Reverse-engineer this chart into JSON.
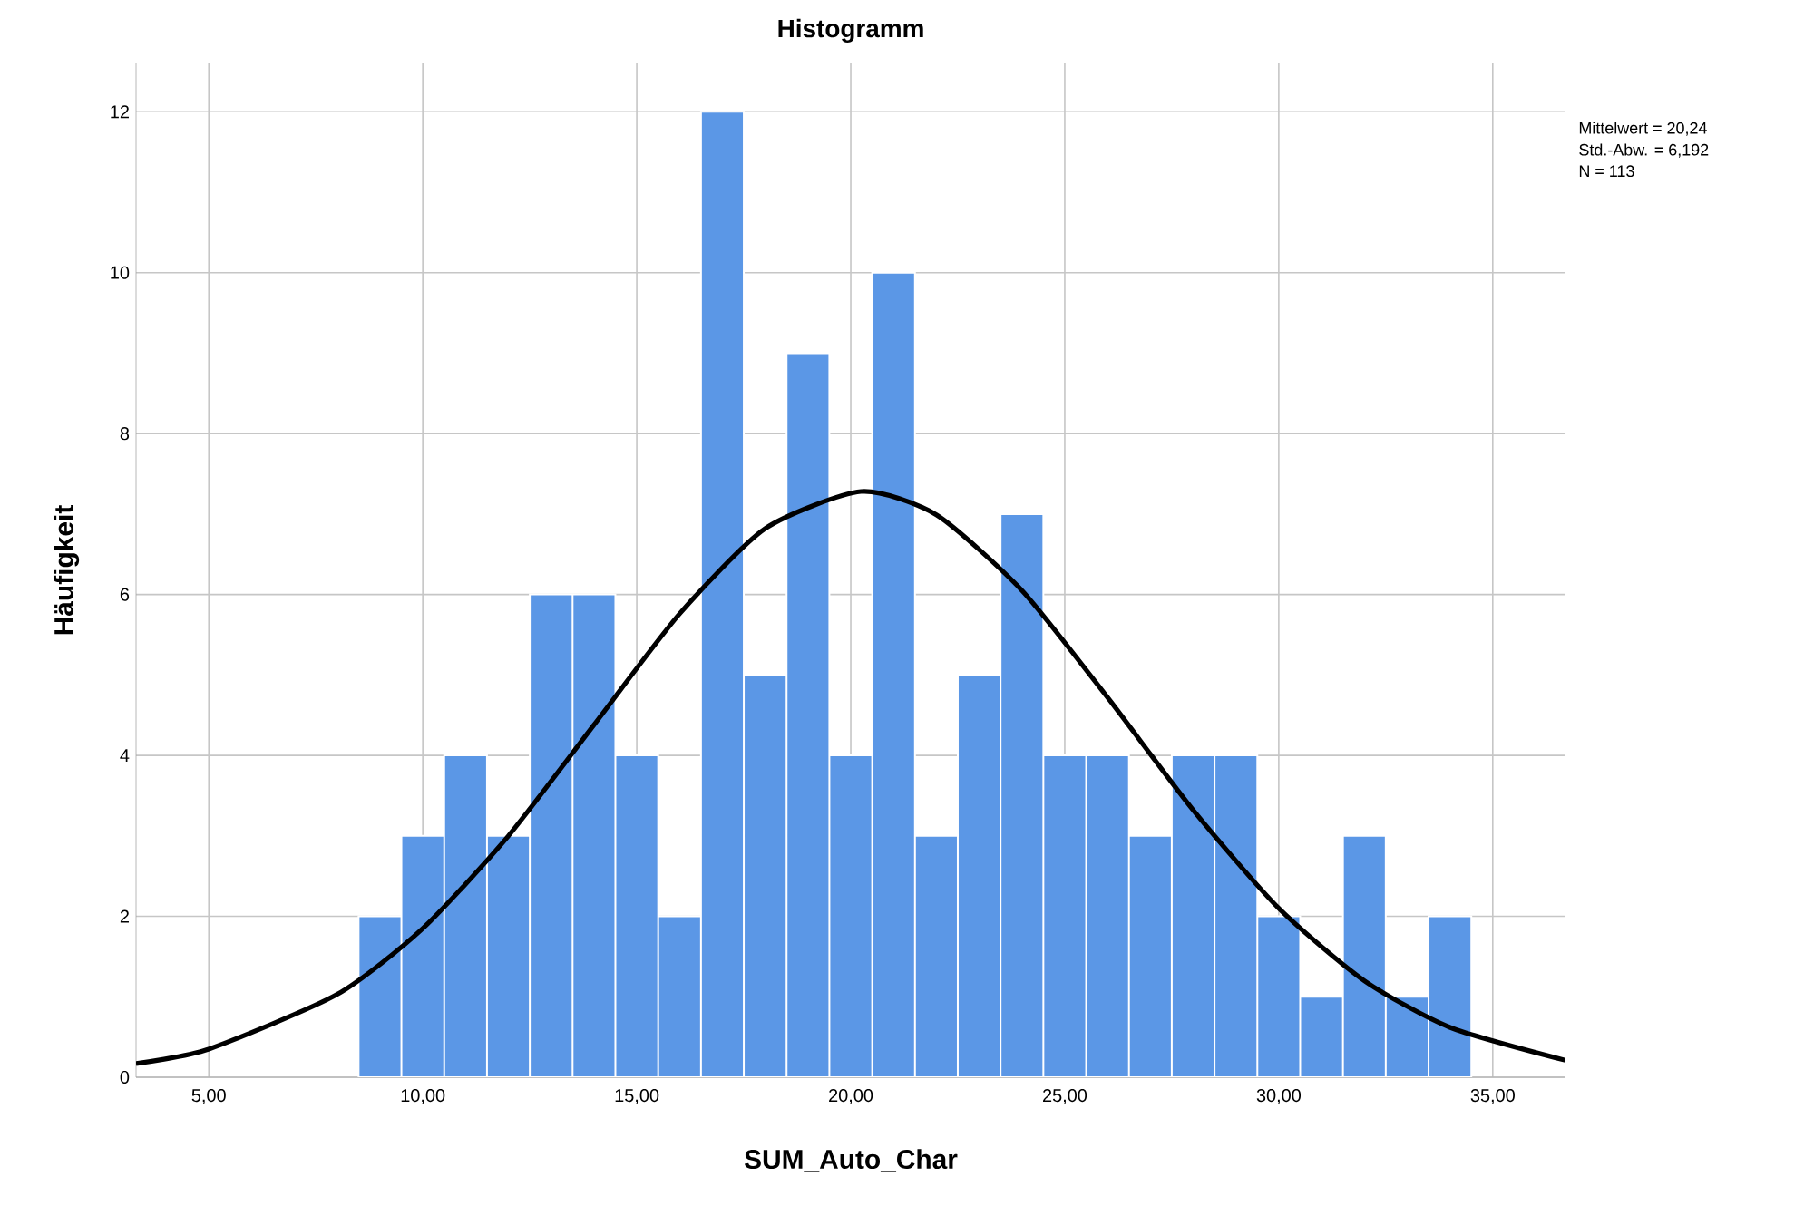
{
  "chart_data": {
    "type": "histogram",
    "title": "Histogramm",
    "xlabel": "SUM_Auto_Char",
    "ylabel": "Häufigkeit",
    "bins": [
      8.5,
      9.5,
      10.5,
      11.5,
      12.5,
      13.5,
      14.5,
      15.5,
      16.5,
      17.5,
      18.5,
      19.5,
      20.5,
      21.5,
      22.5,
      23.5,
      24.5,
      25.5,
      26.5,
      27.5,
      28.5,
      29.5,
      30.5,
      31.5,
      32.5,
      33.5,
      34.5
    ],
    "values": [
      2,
      3,
      4,
      3,
      6,
      6,
      4,
      2,
      12,
      5,
      9,
      4,
      10,
      3,
      5,
      7,
      4,
      4,
      3,
      4,
      4,
      2,
      1,
      3,
      1,
      2
    ],
    "color": "#5b97e6",
    "series": [
      {
        "type": "line",
        "color": "#000000",
        "x": [
          3.3,
          5,
          8,
          10,
          12,
          14,
          16,
          18,
          20.24,
          22,
          24,
          26,
          28,
          30,
          32,
          34,
          36.7
        ],
        "values": [
          0.17,
          0.35,
          1.03,
          1.85,
          3.0,
          4.38,
          5.76,
          6.82,
          7.28,
          6.99,
          6.05,
          4.72,
          3.32,
          2.1,
          1.2,
          0.62,
          0.21
        ]
      }
    ],
    "xlim": [
      3.3,
      36.7
    ],
    "ylim": [
      0,
      12.6
    ],
    "xticks": [
      {
        "value": 5,
        "label": "5,00"
      },
      {
        "value": 10,
        "label": "10,00"
      },
      {
        "value": 15,
        "label": "15,00"
      },
      {
        "value": 20,
        "label": "20,00"
      },
      {
        "value": 25,
        "label": "25,00"
      },
      {
        "value": 30,
        "label": "30,00"
      },
      {
        "value": 35,
        "label": "35,00"
      }
    ],
    "yticks": [
      0,
      2,
      4,
      6,
      8,
      10,
      12
    ],
    "grid": true,
    "annotations": [
      "Mittelwert = 20,24",
      "Std.-Abw. = 6,192",
      "N = 113"
    ]
  }
}
